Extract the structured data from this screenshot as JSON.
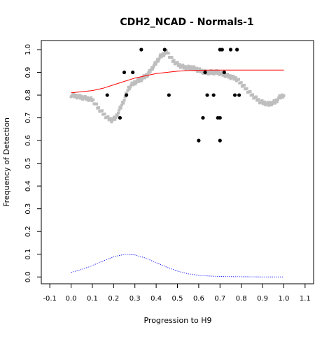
{
  "chart_data": {
    "type": "scatter",
    "title": "CDH2_NCAD - Normals-1",
    "xlabel": "Progression to H9",
    "ylabel": "Frequency of Detection",
    "xlim": [
      -0.14,
      1.14
    ],
    "ylim": [
      -0.03,
      1.04
    ],
    "xticks": [
      "-0.1",
      "0.0",
      "0.1",
      "0.2",
      "0.3",
      "0.4",
      "0.5",
      "0.6",
      "0.7",
      "0.8",
      "0.9",
      "1.0",
      "1.1"
    ],
    "yticks": [
      "0.0",
      "0.1",
      "0.2",
      "0.3",
      "0.4",
      "0.5",
      "0.6",
      "0.7",
      "0.8",
      "0.9",
      "1.0"
    ],
    "grid": false,
    "series": [
      {
        "kind": "points",
        "color": "#000000",
        "x": [
          0.17,
          0.23,
          0.25,
          0.26,
          0.29,
          0.33,
          0.44,
          0.46,
          0.6,
          0.62,
          0.63,
          0.64,
          0.67,
          0.69,
          0.7,
          0.7,
          0.7,
          0.71,
          0.72,
          0.75,
          0.77,
          0.78,
          0.79
        ],
        "y": [
          0.8,
          0.7,
          0.9,
          0.8,
          0.9,
          1.0,
          1.0,
          0.8,
          0.6,
          0.7,
          0.9,
          0.8,
          0.8,
          0.7,
          1.0,
          0.6,
          0.7,
          1.0,
          0.9,
          1.0,
          0.8,
          1.0,
          0.8
        ]
      },
      {
        "kind": "smooth",
        "color": "#bebebe",
        "x": [
          0.0,
          0.05,
          0.1,
          0.13,
          0.17,
          0.19,
          0.21,
          0.23,
          0.25,
          0.27,
          0.29,
          0.31,
          0.33,
          0.36,
          0.39,
          0.42,
          0.45,
          0.48,
          0.51,
          0.54,
          0.57,
          0.6,
          0.63,
          0.66,
          0.69,
          0.72,
          0.75,
          0.78,
          0.81,
          0.85,
          0.89,
          0.93,
          0.96,
          0.98,
          1.0
        ],
        "y": [
          0.8,
          0.79,
          0.78,
          0.74,
          0.7,
          0.69,
          0.7,
          0.74,
          0.78,
          0.83,
          0.85,
          0.86,
          0.87,
          0.89,
          0.93,
          0.97,
          0.99,
          0.95,
          0.93,
          0.92,
          0.92,
          0.91,
          0.9,
          0.9,
          0.9,
          0.89,
          0.88,
          0.87,
          0.84,
          0.8,
          0.77,
          0.76,
          0.77,
          0.79,
          0.8
        ]
      },
      {
        "kind": "line",
        "color": "#ff0000",
        "x": [
          0.0,
          0.05,
          0.1,
          0.15,
          0.2,
          0.25,
          0.3,
          0.35,
          0.4,
          0.45,
          0.5,
          0.55,
          0.6,
          0.65,
          0.7,
          0.8,
          0.9,
          1.0
        ],
        "y": [
          0.81,
          0.815,
          0.82,
          0.83,
          0.845,
          0.86,
          0.875,
          0.885,
          0.895,
          0.9,
          0.905,
          0.908,
          0.909,
          0.91,
          0.91,
          0.91,
          0.91,
          0.91
        ]
      },
      {
        "kind": "dotted",
        "color": "#0000ff",
        "x": [
          0.0,
          0.05,
          0.1,
          0.15,
          0.2,
          0.25,
          0.3,
          0.35,
          0.4,
          0.45,
          0.5,
          0.55,
          0.6,
          0.65,
          0.7,
          0.8,
          0.9,
          1.0
        ],
        "y": [
          0.02,
          0.033,
          0.05,
          0.07,
          0.089,
          0.099,
          0.097,
          0.083,
          0.063,
          0.043,
          0.026,
          0.014,
          0.007,
          0.004,
          0.002,
          0.001,
          0.0,
          0.0
        ]
      }
    ]
  }
}
